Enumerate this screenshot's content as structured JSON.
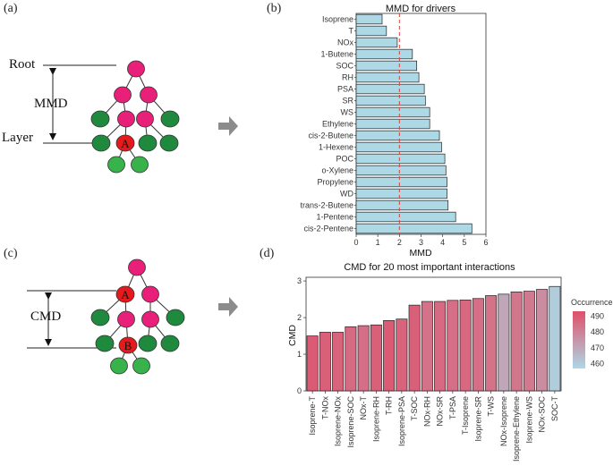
{
  "panels": {
    "a": "(a)",
    "b": "(b)",
    "c": "(c)",
    "d": "(d)"
  },
  "diagram_a": {
    "root_label": "Root",
    "mmd_label": "MMD",
    "layer_label": "Layer",
    "node_label": "A"
  },
  "diagram_c": {
    "cmd_label": "CMD",
    "node_a_label": "A",
    "node_b_label": "B"
  },
  "colors": {
    "root_node": "#e8207a",
    "green_node": "#1f8a3e",
    "light_green_node": "#38b24a",
    "red_node": "#e6191c",
    "bar_b": "#add8e6",
    "arrow": "#8c8c8c"
  },
  "chart_data": [
    {
      "type": "bar",
      "orientation": "horizontal",
      "title": "MMD for drivers",
      "xlabel": "MMD",
      "ylabel": "",
      "xlim": [
        0,
        6
      ],
      "xticks": [
        0,
        1,
        2,
        3,
        4,
        5,
        6
      ],
      "reference_line": 2,
      "categories": [
        "Isoprene",
        "T",
        "NOx",
        "1-Butene",
        "SOC",
        "RH",
        "PSA",
        "SR",
        "WS",
        "Ethylene",
        "cis-2-Butene",
        "1-Hexene",
        "POC",
        "o-Xylene",
        "Propylene",
        "WD",
        "trans-2-Butene",
        "1-Pentene",
        "cis-2-Pentene"
      ],
      "values": [
        1.2,
        1.4,
        1.9,
        2.6,
        2.8,
        2.9,
        3.15,
        3.2,
        3.4,
        3.4,
        3.85,
        3.95,
        4.1,
        4.15,
        4.2,
        4.2,
        4.25,
        4.6,
        5.35
      ]
    },
    {
      "type": "bar",
      "title": "CMD for 20 most important interactions",
      "xlabel": "",
      "ylabel": "CMD",
      "ylim": [
        0,
        3
      ],
      "yticks": [
        0,
        1,
        2,
        3
      ],
      "categories": [
        "Isoprene-T",
        "T-NOx",
        "Isoprene-NOx",
        "Isoprene-SOC",
        "NOx-T",
        "Isoprene-RH",
        "T-RH",
        "Isoprene-PSA",
        "T-SOC",
        "NOx-RH",
        "NOx-SR",
        "T-PSA",
        "T-Isoprene",
        "Isoprene-SR",
        "T-WS",
        "NOx-Isoprene",
        "Isoprene-Ethylene",
        "Isoprene-WS",
        "NOx-SOC",
        "SOC-T"
      ],
      "values": [
        1.5,
        1.6,
        1.6,
        1.75,
        1.78,
        1.8,
        1.92,
        1.96,
        2.34,
        2.44,
        2.44,
        2.47,
        2.48,
        2.52,
        2.6,
        2.64,
        2.7,
        2.72,
        2.77,
        2.85
      ],
      "occurrences": [
        490,
        489,
        488,
        486,
        485,
        489,
        490,
        488,
        489,
        484,
        486,
        485,
        487,
        485,
        484,
        470,
        483,
        482,
        477,
        460
      ],
      "legend": {
        "title": "Occurrences",
        "ticks": [
          490,
          480,
          470,
          460
        ],
        "range": [
          457,
          493
        ],
        "color_low": "#add8e6",
        "color_high": "#e0506a",
        "placement": "right"
      }
    }
  ]
}
